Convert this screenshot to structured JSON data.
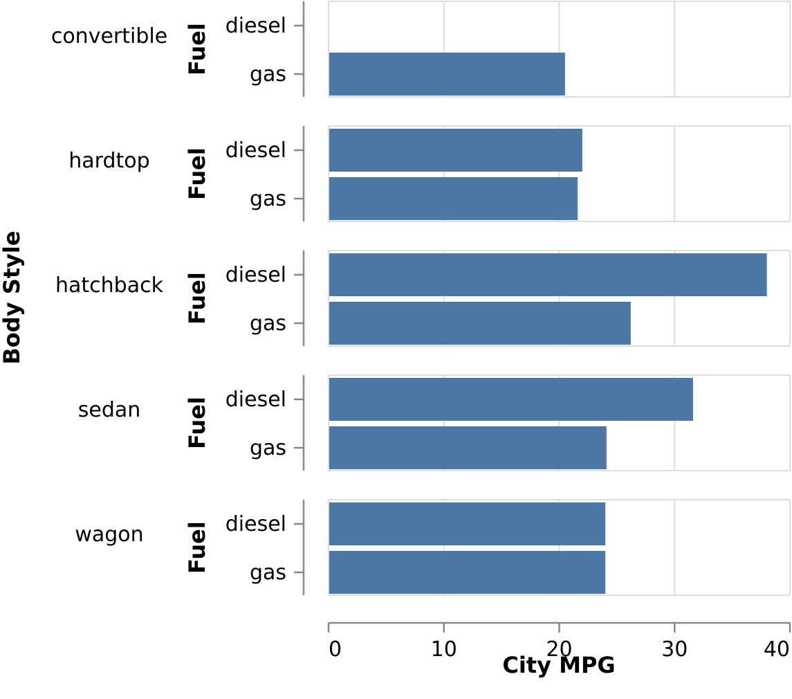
{
  "chart_data": {
    "type": "bar",
    "orientation": "horizontal",
    "row_facet_title": "Body Style",
    "inner_axis_title": "Fuel",
    "xlabel": "City MPG",
    "xlim": [
      0,
      40
    ],
    "xticks": [
      0,
      10,
      20,
      30,
      40
    ],
    "grid": true,
    "bar_color": "#4c78a8",
    "fuel_categories": [
      "diesel",
      "gas"
    ],
    "facets": [
      {
        "label": "convertible",
        "values": {
          "diesel": null,
          "gas": 20.5
        }
      },
      {
        "label": "hardtop",
        "values": {
          "diesel": 22,
          "gas": 21.6
        }
      },
      {
        "label": "hatchback",
        "values": {
          "diesel": 38,
          "gas": 26.2
        }
      },
      {
        "label": "sedan",
        "values": {
          "diesel": 31.6,
          "gas": 24.1
        }
      },
      {
        "label": "wagon",
        "values": {
          "diesel": 24,
          "gas": 24
        }
      }
    ]
  }
}
